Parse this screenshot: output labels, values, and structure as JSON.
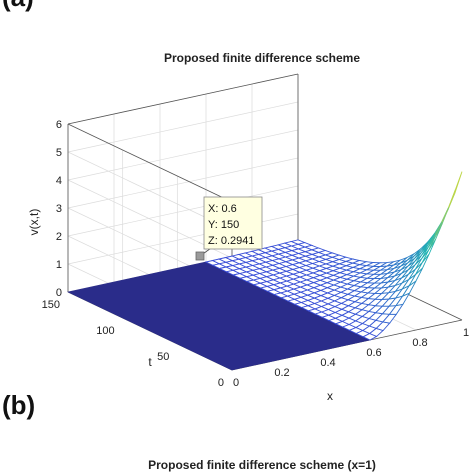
{
  "panels": {
    "a": "(a)",
    "b": "(b)"
  },
  "chart_data": [
    {
      "type": "surface",
      "title": "Proposed finite difference scheme",
      "xlabel": "x",
      "ylabel": "t",
      "zlabel": "v(x,t)",
      "xlim": [
        0,
        1
      ],
      "ylim": [
        0,
        150
      ],
      "zlim": [
        0,
        6
      ],
      "xticks": [
        "0",
        "0.2",
        "0.4",
        "0.6",
        "0.8",
        "1"
      ],
      "yticks": [
        "0",
        "50",
        "100",
        "150"
      ],
      "zticks": [
        "0",
        "1",
        "2",
        "3",
        "4",
        "5",
        "6"
      ],
      "grid": true,
      "colormap": "parula",
      "surface_colors": {
        "floor": "#2a2c8a",
        "low": "#3b4fd8",
        "mid": "#21b5b2",
        "high": "#f5e21f"
      },
      "surface_description_values": {
        "flat_region": {
          "x_max": 0.6,
          "z": 0
        },
        "peak": {
          "x": 1,
          "t": 0,
          "z": 5.3
        }
      },
      "datatip": {
        "x_label": "X: 0.6",
        "y_label": "Y: 150",
        "z_label": "Z: 0.2941",
        "x": 0.6,
        "y": 150,
        "z": 0.2941
      }
    },
    {
      "type": "line",
      "title": "Proposed finite difference scheme (x=1)"
    }
  ]
}
